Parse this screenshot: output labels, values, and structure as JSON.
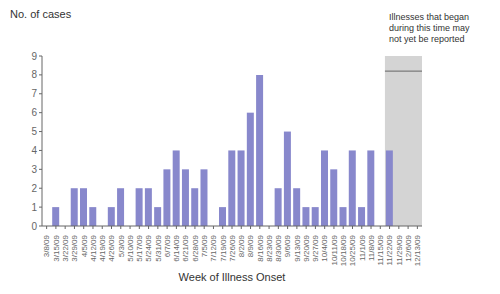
{
  "chart_data": {
    "type": "bar",
    "categories": [
      "3/8/09",
      "3/15/09",
      "3/22/09",
      "3/29/09",
      "4/5/09",
      "4/12/09",
      "4/19/09",
      "4/26/09",
      "5/3/09",
      "5/10/09",
      "5/17/09",
      "5/24/09",
      "5/31/09",
      "6/7/09",
      "6/14/09",
      "6/21/09",
      "6/28/09",
      "7/5/09",
      "7/12/09",
      "7/19/09",
      "7/26/09",
      "8/2/09",
      "8/9/09",
      "8/16/09",
      "8/23/09",
      "8/30/09",
      "9/6/09",
      "9/13/09",
      "9/20/09",
      "9/27/09",
      "10/4/09",
      "10/11/09",
      "10/18/09",
      "10/25/09",
      "11/1/09",
      "11/8/09",
      "11/15/09",
      "11/22/09",
      "11/29/09",
      "12/6/09",
      "12/13/09"
    ],
    "values": [
      0,
      1,
      0,
      2,
      2,
      1,
      0,
      1,
      2,
      0,
      2,
      2,
      1,
      3,
      4,
      3,
      2,
      3,
      0,
      1,
      4,
      4,
      6,
      8,
      0,
      2,
      5,
      2,
      1,
      1,
      4,
      3,
      1,
      4,
      1,
      4,
      0,
      4,
      0,
      0,
      0
    ],
    "color": "#8888cc",
    "xlabel": "Week of Illness Onset",
    "ylabel": "No. of cases",
    "ylim": [
      0,
      9
    ],
    "yticks": [
      0,
      1,
      2,
      3,
      4,
      5,
      6,
      7,
      8,
      9
    ],
    "annotation": {
      "text": "Illnesses that began\nduring this time may\nnot yet be reported",
      "x_from": "11/22/09",
      "x_to": "12/13/09",
      "y": 8.2,
      "color": "#d4d4d4"
    }
  }
}
